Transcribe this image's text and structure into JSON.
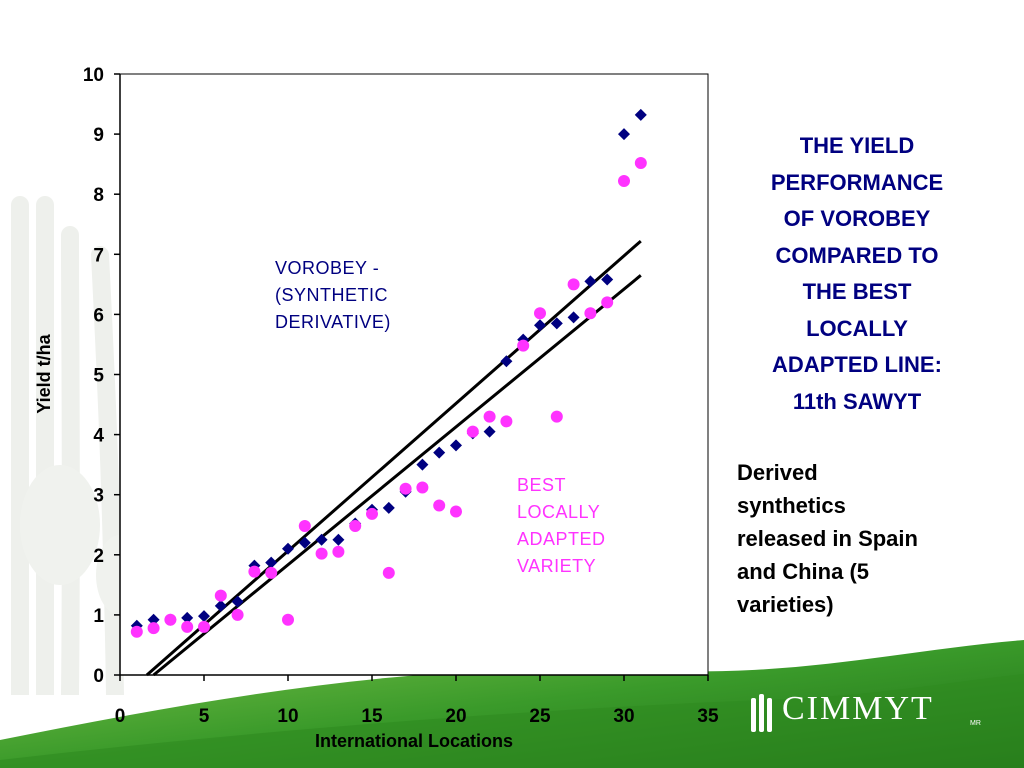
{
  "slide": {
    "title": "THE YIELD\nPERFORMANCE\nOF VOROBEY\nCOMPARED TO\nTHE BEST\nLOCALLY\nADAPTED LINE:\n11th SAWYT",
    "body": "Derived\nsynthetics\nreleased in Spain\nand China (5\nvarieties)",
    "title_color": "#000080"
  },
  "annotations": {
    "vorobey": "VOROBEY -\n(SYNTHETIC\nDERIVATIVE)",
    "best": "BEST\nLOCALLY\nADAPTED\nVARIETY"
  },
  "logo": {
    "text": "CIMMYT",
    "mark": "MR",
    "icon": "wheat-icon"
  },
  "colors": {
    "vorobey": "#000080",
    "best": "#ff33ff",
    "trendline": "#000000",
    "background_green": "#2e8b1f"
  },
  "chart_data": {
    "type": "scatter",
    "xlabel": "International Locations",
    "ylabel": "Yield t/ha",
    "xlim": [
      0,
      35
    ],
    "ylim": [
      0,
      10
    ],
    "xticks": [
      0,
      5,
      10,
      15,
      20,
      25,
      30,
      35
    ],
    "yticks": [
      0,
      1,
      2,
      3,
      4,
      5,
      6,
      7,
      8,
      9,
      10
    ],
    "grid": false,
    "legend": "none",
    "series": [
      {
        "label": "VOROBEY - (SYNTHETIC DERIVATIVE)",
        "marker": "diamond",
        "color": "#000080",
        "x": [
          1,
          2,
          3,
          4,
          5,
          6,
          7,
          8,
          9,
          10,
          11,
          12,
          13,
          14,
          15,
          16,
          17,
          18,
          19,
          20,
          21,
          22,
          23,
          24,
          25,
          26,
          27,
          28,
          29,
          30,
          31
        ],
        "y": [
          0.82,
          0.92,
          0.92,
          0.95,
          0.98,
          1.15,
          1.22,
          1.82,
          1.87,
          2.1,
          2.2,
          2.25,
          2.25,
          2.52,
          2.75,
          2.78,
          3.05,
          3.5,
          3.7,
          3.82,
          4.02,
          4.05,
          5.22,
          5.58,
          5.82,
          5.85,
          5.95,
          6.55,
          6.58,
          9.0,
          9.32
        ],
        "trend": {
          "x": [
            1.6,
            31
          ],
          "y": [
            0,
            7.22
          ]
        }
      },
      {
        "label": "BEST LOCALLY ADAPTED VARIETY",
        "marker": "circle",
        "color": "#ff33ff",
        "x": [
          1,
          2,
          3,
          4,
          5,
          6,
          7,
          8,
          9,
          10,
          11,
          12,
          13,
          14,
          15,
          16,
          17,
          18,
          19,
          20,
          21,
          22,
          23,
          24,
          25,
          26,
          27,
          28,
          29,
          30,
          31
        ],
        "y": [
          0.72,
          0.78,
          0.92,
          0.8,
          0.8,
          1.32,
          1.0,
          1.72,
          1.7,
          0.92,
          2.48,
          2.02,
          2.05,
          2.48,
          2.68,
          1.7,
          3.1,
          3.12,
          2.82,
          2.72,
          4.05,
          4.3,
          4.22,
          5.48,
          6.02,
          4.3,
          6.5,
          6.02,
          6.2,
          8.22,
          8.52
        ],
        "trend": {
          "x": [
            2,
            31
          ],
          "y": [
            0,
            6.65
          ]
        }
      }
    ]
  }
}
